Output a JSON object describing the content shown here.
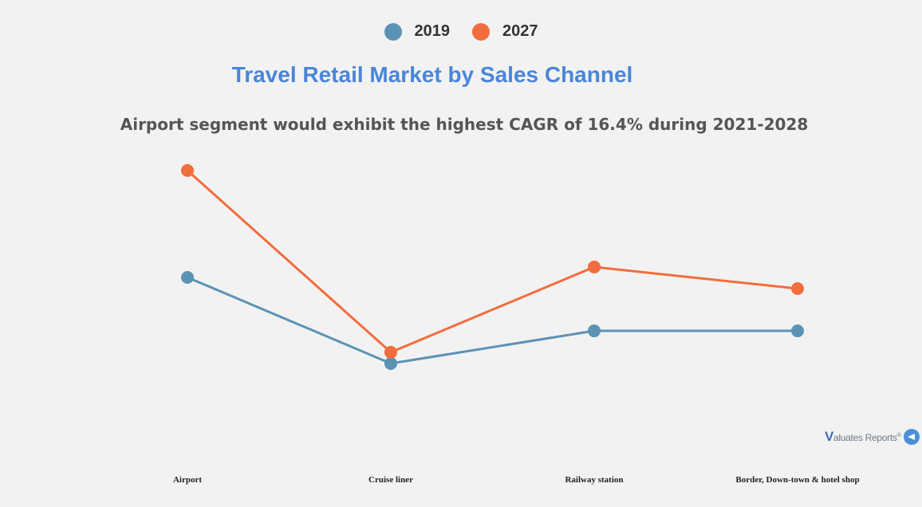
{
  "chart_data": {
    "type": "line",
    "title": "Travel Retail Market by Sales Channel",
    "subtitle": "Airport segment would exhibit the highest CAGR of 16.4% during 2021-2028",
    "categories": [
      "Airport",
      "Cruise liner",
      "Railway station",
      "Border, Down-town & hotel shop"
    ],
    "series": [
      {
        "name": "2019",
        "color": "#5b93b5",
        "values": [
          44.6,
          0,
          16.9,
          16.9
        ]
      },
      {
        "name": "2027",
        "color": "#f26d3d",
        "values": [
          100,
          5.8,
          50,
          38.8
        ]
      }
    ],
    "xlabel": "",
    "ylabel": "",
    "y_units": "relative (no value axis shown)",
    "ylim": [
      -18.2,
      114
    ],
    "grid": false,
    "legend_position": "top-center"
  },
  "brand": {
    "initial": "V",
    "text": "aluates Reports",
    "mark": "®",
    "icon": "valuates-logo-icon"
  }
}
